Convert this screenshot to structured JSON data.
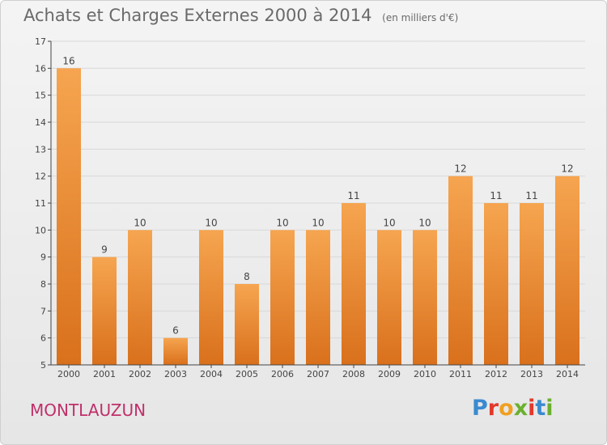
{
  "header": {
    "title": "Achats et Charges Externes 2000 à 2014",
    "unit": "(en milliers d'€)"
  },
  "footer": {
    "town": "MONTLAUZUN",
    "brand": "Proxiti",
    "brand_colors": [
      "#3a8ad0",
      "#e2382a",
      "#f0a020",
      "#6ab02e",
      "#e2382a",
      "#3a8ad0",
      "#6ab02e"
    ]
  },
  "colors": {
    "bar_top": "#f6a550",
    "bar_bottom": "#d9701c",
    "grid": "#d8d8d8",
    "axis": "#444444",
    "text": "#444444"
  },
  "chart_data": {
    "type": "bar",
    "title": "Achats et Charges Externes 2000 à 2014",
    "subtitle": "(en milliers d'€)",
    "categories": [
      "2000",
      "2001",
      "2002",
      "2003",
      "2004",
      "2005",
      "2006",
      "2007",
      "2008",
      "2009",
      "2010",
      "2011",
      "2012",
      "2013",
      "2014"
    ],
    "values": [
      16,
      9,
      10,
      6,
      10,
      8,
      10,
      10,
      11,
      10,
      10,
      12,
      11,
      11,
      12
    ],
    "ylim": [
      5,
      17
    ],
    "yticks": [
      5,
      6,
      7,
      8,
      9,
      10,
      11,
      12,
      13,
      14,
      15,
      16,
      17
    ],
    "grid": true,
    "data_labels": true
  }
}
